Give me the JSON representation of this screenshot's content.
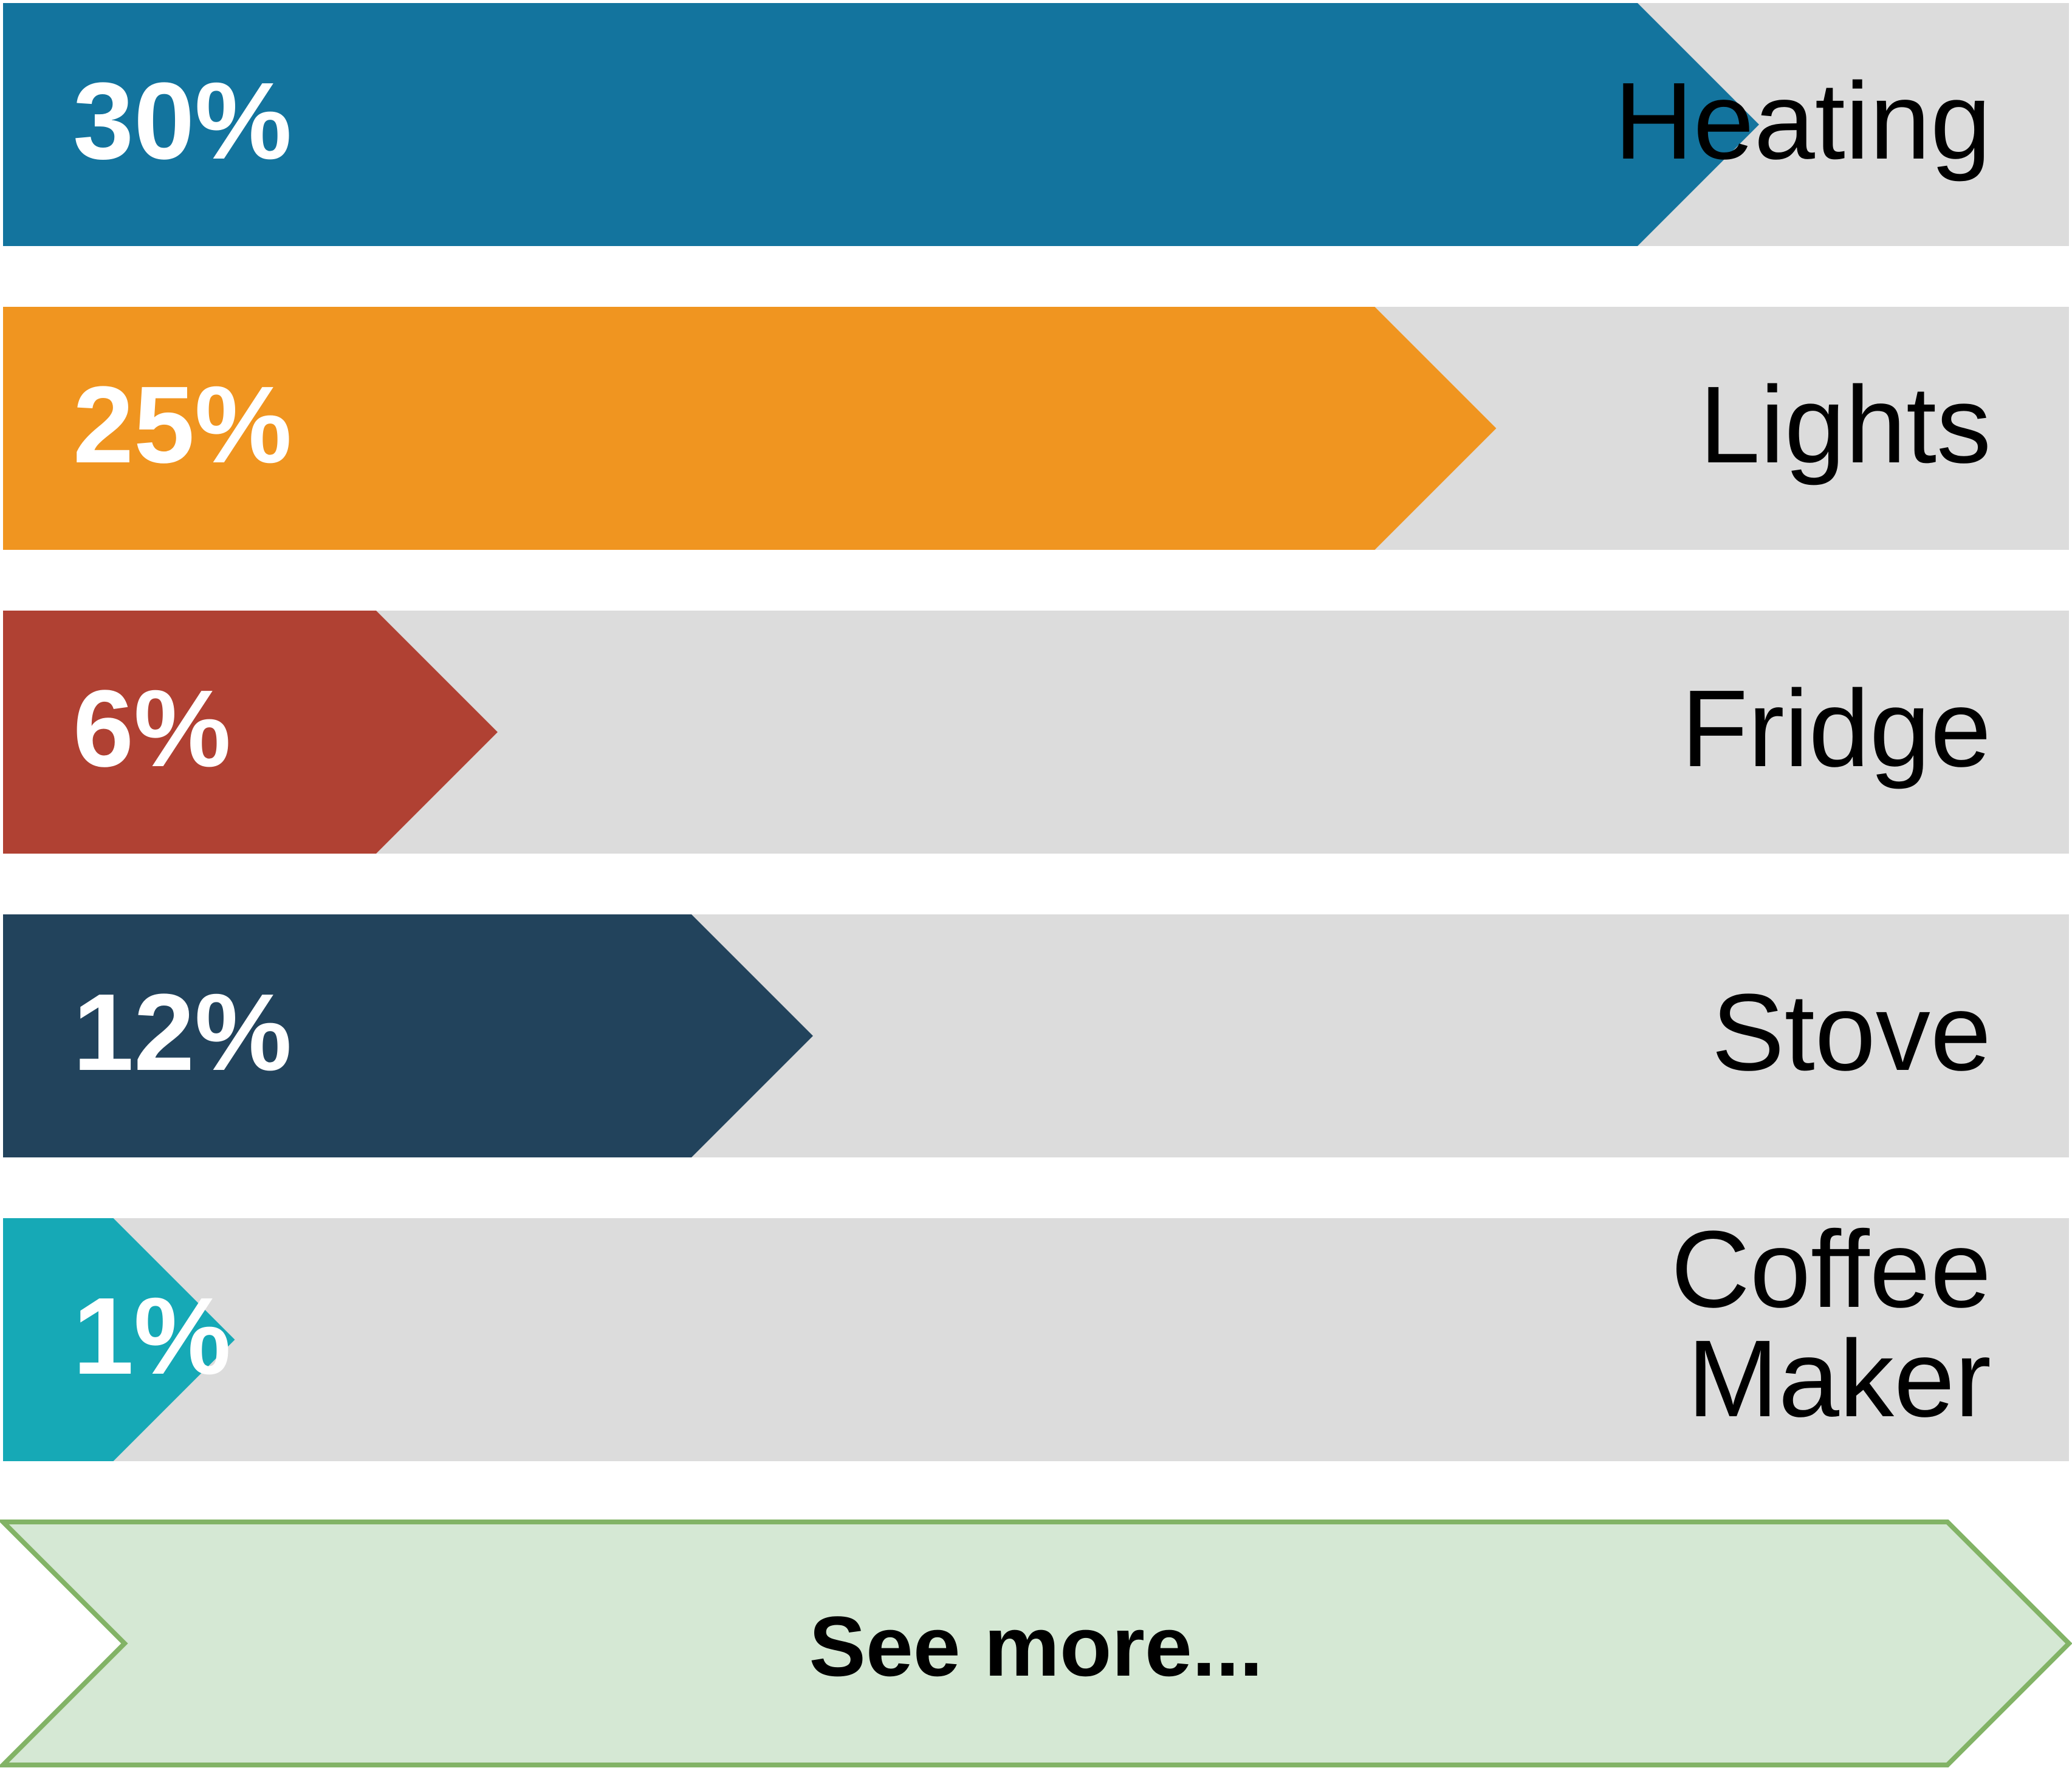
{
  "rows": [
    {
      "percent": "30%",
      "value": 30,
      "label": "Heating",
      "color": "#13749e"
    },
    {
      "percent": "25%",
      "value": 25,
      "label": "Lights",
      "color": "#f09520"
    },
    {
      "percent": "6%",
      "value": 6,
      "label": "Fridge",
      "color": "#b04133"
    },
    {
      "percent": "12%",
      "value": 12,
      "label": "Stove",
      "color": "#22435c"
    },
    {
      "percent": "1%",
      "value": 1,
      "label": "Coffee Maker",
      "color": "#16a9b6"
    }
  ],
  "track_color": "#dcdcdc",
  "see_more": {
    "label": "See more...",
    "fill": "#d5e8d4",
    "stroke": "#82b366"
  }
}
